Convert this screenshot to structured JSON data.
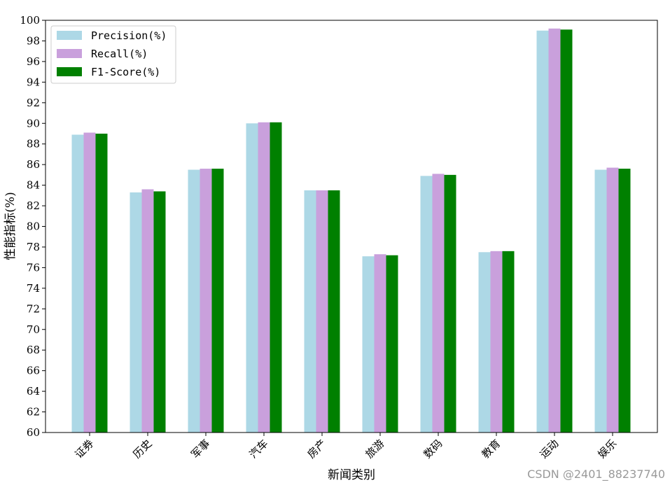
{
  "chart_data": {
    "type": "bar",
    "title": "",
    "xlabel": "新闻类别",
    "ylabel": "性能指标(%)",
    "ylim": [
      60,
      100
    ],
    "ytick_step": 2,
    "grid": false,
    "legend_position": "top-left",
    "categories": [
      "证券",
      "历史",
      "军事",
      "汽车",
      "房产",
      "旅游",
      "数码",
      "教育",
      "运动",
      "娱乐"
    ],
    "series": [
      {
        "name": "Precision(%)",
        "color": "#add8e6",
        "values": [
          88.9,
          83.3,
          85.5,
          90.0,
          83.5,
          77.1,
          84.9,
          77.5,
          99.0,
          85.5
        ]
      },
      {
        "name": "Recall(%)",
        "color": "#c9a0dc",
        "values": [
          89.1,
          83.6,
          85.6,
          90.1,
          83.5,
          77.3,
          85.1,
          77.6,
          99.2,
          85.7
        ]
      },
      {
        "name": "F1-Score(%)",
        "color": "#008000",
        "values": [
          89.0,
          83.4,
          85.6,
          90.1,
          83.5,
          77.2,
          85.0,
          77.6,
          99.1,
          85.6
        ]
      }
    ]
  },
  "watermark": "CSDN @2401_88237740"
}
